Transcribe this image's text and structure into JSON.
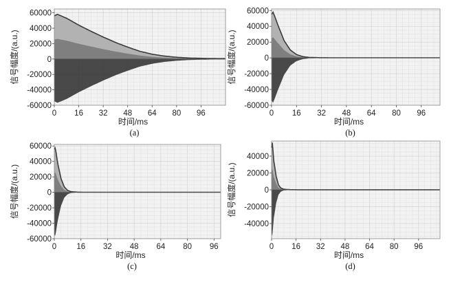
{
  "chart_data": [
    {
      "type": "line",
      "caption": "(a)",
      "xlabel": "时间/ms",
      "ylabel": "信号幅度/(a.u.)",
      "xlim": [
        0,
        112
      ],
      "ylim": [
        -60000,
        65000
      ],
      "xticks": [
        0,
        16,
        32,
        48,
        64,
        80,
        96
      ],
      "yticks": [
        -60000,
        -40000,
        -20000,
        0,
        20000,
        40000,
        60000
      ],
      "grid": true,
      "series": [
        {
          "values": [
            [
              0,
              56000
            ],
            [
              2,
              58000
            ],
            [
              8,
              53000
            ],
            [
              16,
              44000
            ],
            [
              24,
              36000
            ],
            [
              32,
              28500
            ],
            [
              40,
              21500
            ],
            [
              48,
              15500
            ],
            [
              56,
              10000
            ],
            [
              64,
              6300
            ],
            [
              72,
              3800
            ],
            [
              80,
              2300
            ],
            [
              88,
              1300
            ],
            [
              96,
              900
            ],
            [
              104,
              600
            ],
            [
              112,
              500
            ]
          ]
        }
      ]
    },
    {
      "type": "line",
      "caption": "(b)",
      "xlabel": "时间/ms",
      "ylabel": "信号幅度/(a.u.)",
      "xlim": [
        0,
        108
      ],
      "ylim": [
        -60000,
        62000
      ],
      "xticks": [
        0,
        16,
        32,
        48,
        64,
        80,
        96
      ],
      "yticks": [
        -60000,
        -40000,
        -20000,
        0,
        20000,
        40000,
        60000
      ],
      "grid": true,
      "series": [
        {
          "values": [
            [
              0,
              55000
            ],
            [
              1,
              58000
            ],
            [
              4,
              42000
            ],
            [
              8,
              22000
            ],
            [
              12,
              10000
            ],
            [
              16,
              4200
            ],
            [
              20,
              1600
            ],
            [
              24,
              600
            ],
            [
              32,
              200
            ],
            [
              48,
              100
            ],
            [
              108,
              100
            ]
          ]
        }
      ]
    },
    {
      "type": "line",
      "caption": "(c)",
      "xlabel": "时间/ms",
      "ylabel": "信号幅度/(a.u.)",
      "xlim": [
        0,
        100
      ],
      "ylim": [
        -60000,
        62000
      ],
      "xticks": [
        0,
        16,
        32,
        48,
        64,
        80,
        96
      ],
      "yticks": [
        -60000,
        -40000,
        -20000,
        0,
        20000,
        40000,
        60000
      ],
      "grid": true,
      "series": [
        {
          "values": [
            [
              0,
              56000
            ],
            [
              0.6,
              58000
            ],
            [
              2,
              38000
            ],
            [
              4,
              18000
            ],
            [
              6,
              7000
            ],
            [
              8,
              2500
            ],
            [
              10,
              900
            ],
            [
              14,
              200
            ],
            [
              20,
              100
            ],
            [
              100,
              100
            ]
          ]
        }
      ]
    },
    {
      "type": "line",
      "caption": "(d)",
      "xlabel": "时间/ms",
      "ylabel": "信号幅度/(a.u.)",
      "xlim": [
        0,
        110
      ],
      "ylim": [
        -58000,
        58000
      ],
      "xticks": [
        0,
        16,
        32,
        48,
        64,
        80,
        96
      ],
      "yticks": [
        -40000,
        -20000,
        0,
        20000,
        40000
      ],
      "grid": true,
      "series": [
        {
          "values": [
            [
              0,
              50000
            ],
            [
              0.5,
              56000
            ],
            [
              1.5,
              34000
            ],
            [
              3,
              16000
            ],
            [
              4.5,
              6000
            ],
            [
              6,
              2200
            ],
            [
              8,
              700
            ],
            [
              12,
              150
            ],
            [
              20,
              100
            ],
            [
              110,
              100
            ]
          ]
        }
      ]
    }
  ],
  "colors": {
    "plot_bg": "#f2f2f2",
    "grid_minor": "#e3e3e3",
    "grid_major": "#cfcfcf",
    "envelope": "#3a3a3a",
    "fill_light": "#b2b2b2",
    "fill_mid": "#6e6e6e",
    "fill_dark": "#2c2c2c"
  }
}
